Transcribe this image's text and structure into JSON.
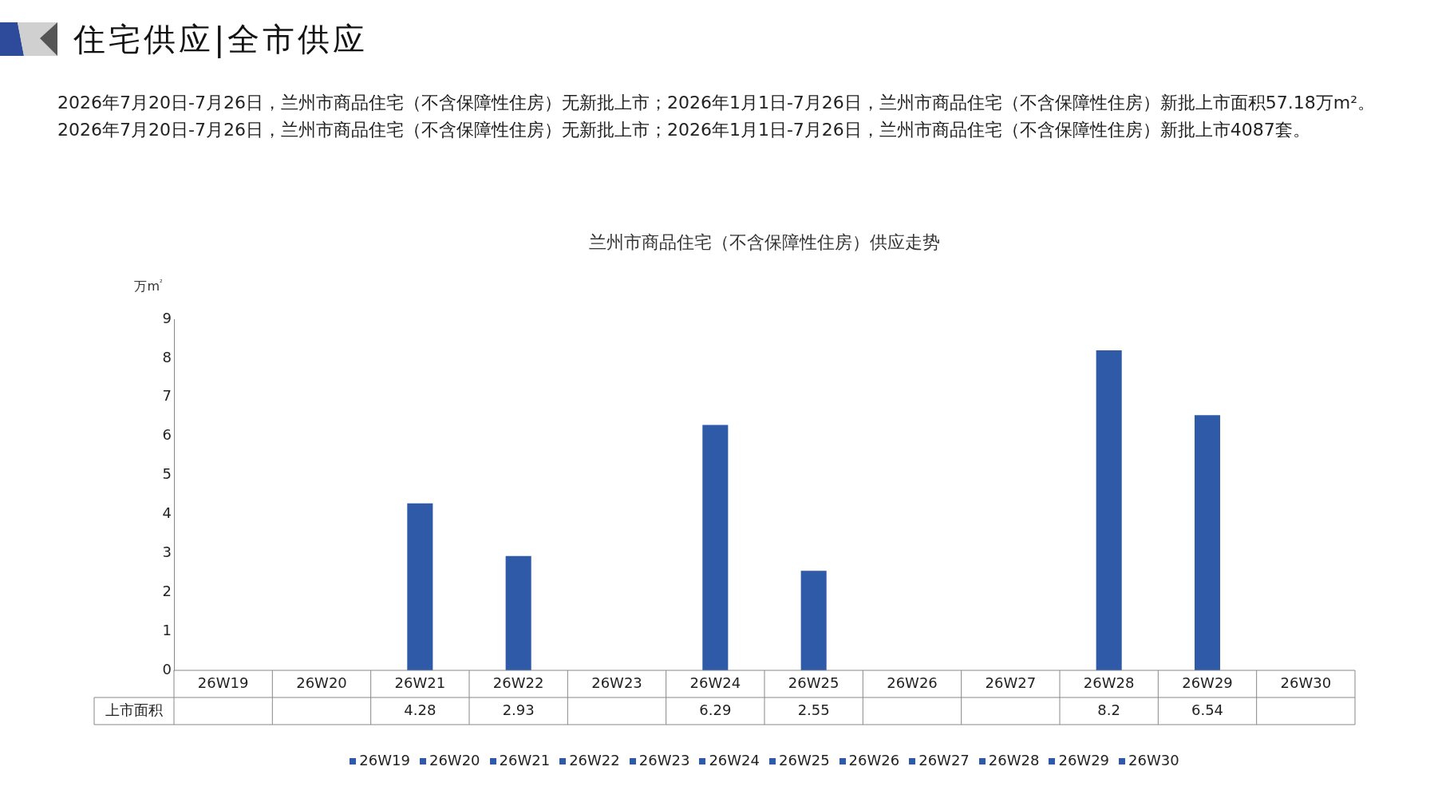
{
  "chart_data": {
    "type": "bar",
    "title": "兰州市商品住宅（不含保障性住房）供应走势",
    "subtitle": "2026年7月20日-7月26日，兰州市商品住宅（不含保障性住房）无新批上市；2026年1月1日-7月26日，兰州市商品住宅（不含保障性住房）新批上市面积57.18万m²。2026年7月20日-7月26日，兰州市商品住宅（不含保障性住房）无新批上市；2026年1月1日-7月26日，兰州市商品住宅（不含保障性住房）新批上市4087套。",
    "annotations": [
      "住宅供应|全市供应"
    ],
    "ylabel": "万m²",
    "categories": [
      "26W19",
      "26W20",
      "26W21",
      "26W22",
      "26W23",
      "26W24",
      "26W25",
      "26W26",
      "26W27",
      "26W28",
      "26W29",
      "26W30"
    ],
    "series": [
      {
        "name": "上市面积",
        "color": "#2e5aa8",
        "values": [
          null,
          null,
          4.28,
          2.93,
          null,
          6.29,
          2.55,
          null,
          null,
          8.2,
          6.54,
          null
        ]
      }
    ],
    "ylim": [
      0,
      9
    ],
    "yticks": [
      0,
      1,
      2,
      3,
      4,
      5,
      6,
      7,
      8,
      9
    ],
    "grid": false,
    "legend": "bottom",
    "data_labels": true
  }
}
